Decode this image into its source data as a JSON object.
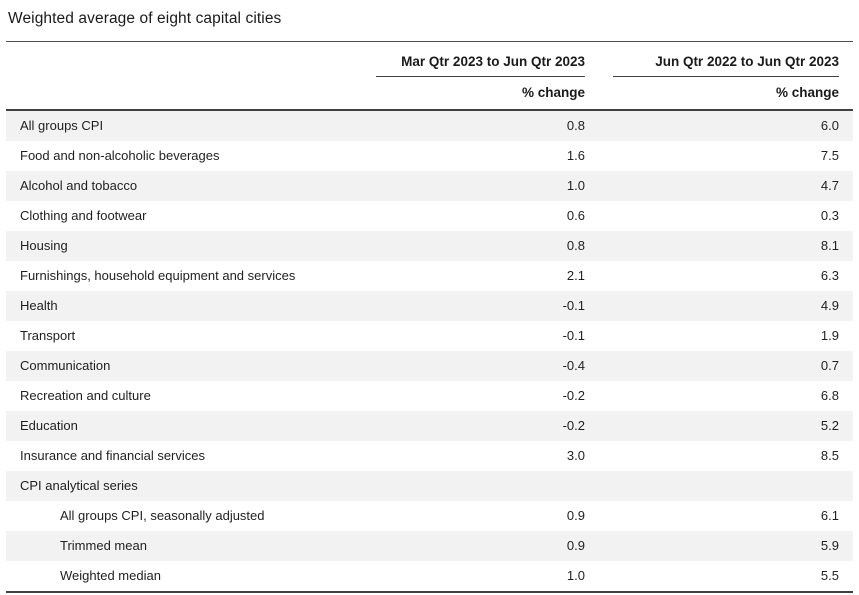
{
  "title": "Weighted average of eight capital cities",
  "chart_data": {
    "type": "table",
    "title": "Weighted average of eight capital cities",
    "col_headers": [
      "Mar Qtr 2023 to Jun Qtr 2023",
      "Jun Qtr 2022 to Jun Qtr 2023"
    ],
    "sub_headers": [
      "% change",
      "% change"
    ],
    "rows": [
      {
        "label": "All groups CPI",
        "indent": false,
        "values": [
          "0.8",
          "6.0"
        ]
      },
      {
        "label": "Food and non-alcoholic beverages",
        "indent": false,
        "values": [
          "1.6",
          "7.5"
        ]
      },
      {
        "label": "Alcohol and tobacco",
        "indent": false,
        "values": [
          "1.0",
          "4.7"
        ]
      },
      {
        "label": "Clothing and footwear",
        "indent": false,
        "values": [
          "0.6",
          "0.3"
        ]
      },
      {
        "label": "Housing",
        "indent": false,
        "values": [
          "0.8",
          "8.1"
        ]
      },
      {
        "label": "Furnishings, household equipment and services",
        "indent": false,
        "values": [
          "2.1",
          "6.3"
        ]
      },
      {
        "label": "Health",
        "indent": false,
        "values": [
          "-0.1",
          "4.9"
        ]
      },
      {
        "label": "Transport",
        "indent": false,
        "values": [
          "-0.1",
          "1.9"
        ]
      },
      {
        "label": "Communication",
        "indent": false,
        "values": [
          "-0.4",
          "0.7"
        ]
      },
      {
        "label": "Recreation and culture",
        "indent": false,
        "values": [
          "-0.2",
          "6.8"
        ]
      },
      {
        "label": "Education",
        "indent": false,
        "values": [
          "-0.2",
          "5.2"
        ]
      },
      {
        "label": "Insurance and financial services",
        "indent": false,
        "values": [
          "3.0",
          "8.5"
        ]
      },
      {
        "label": "CPI analytical series",
        "indent": false,
        "values": [
          "",
          ""
        ]
      },
      {
        "label": "All groups CPI, seasonally adjusted",
        "indent": true,
        "values": [
          "0.9",
          "6.1"
        ]
      },
      {
        "label": "Trimmed mean",
        "indent": true,
        "values": [
          "0.9",
          "5.9"
        ]
      },
      {
        "label": "Weighted median",
        "indent": true,
        "values": [
          "1.0",
          "5.5"
        ]
      }
    ]
  }
}
